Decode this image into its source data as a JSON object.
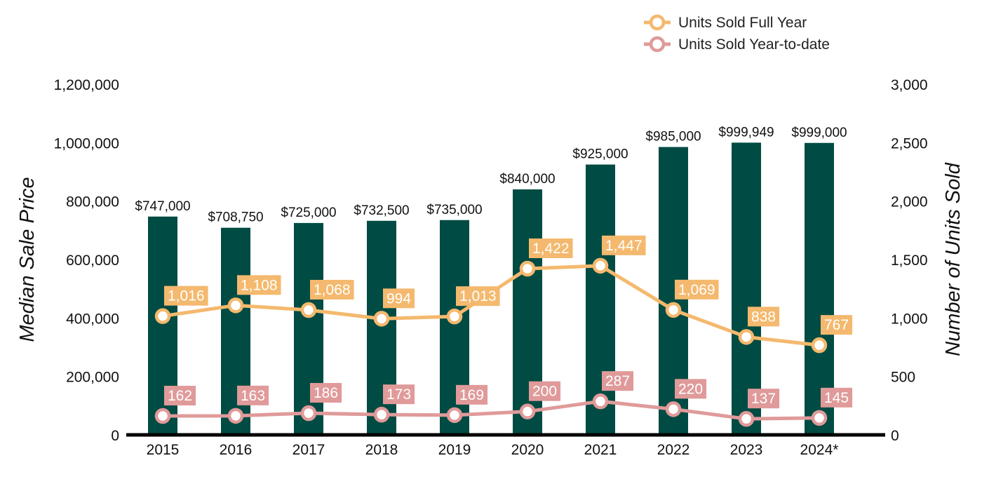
{
  "colors": {
    "bar": "#004b43",
    "full_year": "#f4b96e",
    "ytd": "#e09a9a",
    "axis_line": "#000000"
  },
  "chart_data": {
    "type": "bar",
    "categories": [
      "2015",
      "2016",
      "2017",
      "2018",
      "2019",
      "2020",
      "2021",
      "2022",
      "2023",
      "2024*"
    ],
    "bar_series": {
      "values": [
        747000,
        708750,
        725000,
        732500,
        735000,
        840000,
        925000,
        985000,
        999949,
        999000
      ],
      "labels": [
        "$747,000",
        "$708,750",
        "$725,000",
        "$732,500",
        "$735,000",
        "$840,000",
        "$925,000",
        "$985,000",
        "$999,949",
        "$999,000"
      ]
    },
    "line_series": [
      {
        "name": "Units Sold Full Year",
        "values": [
          1016,
          1108,
          1068,
          994,
          1013,
          1422,
          1447,
          1069,
          838,
          767
        ],
        "labels": [
          "1,016",
          "1,108",
          "1,068",
          "994",
          "1,013",
          "1,422",
          "1,447",
          "1,069",
          "838",
          "767"
        ]
      },
      {
        "name": "Units Sold Year-to-date",
        "values": [
          162,
          163,
          186,
          173,
          169,
          200,
          287,
          220,
          137,
          145
        ],
        "labels": [
          "162",
          "163",
          "186",
          "173",
          "169",
          "200",
          "287",
          "220",
          "137",
          "145"
        ]
      }
    ],
    "ylabel_left": "Median Sale Price",
    "ylabel_right": "Number of Units Sold",
    "ylim_left": [
      0,
      1200000
    ],
    "ylim_right": [
      0,
      3000
    ],
    "left_ticks": [
      "0",
      "200,000",
      "400,000",
      "600,000",
      "800,000",
      "1,000,000",
      "1,200,000"
    ],
    "right_ticks": [
      "0",
      "500",
      "1,000",
      "1,500",
      "2,000",
      "2,500",
      "3,000"
    ],
    "grid": false,
    "legend_position": "top-right"
  }
}
